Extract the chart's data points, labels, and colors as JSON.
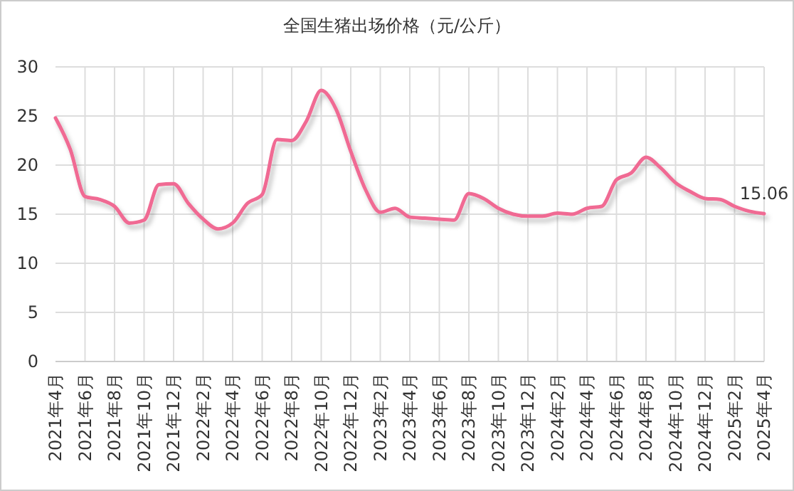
{
  "chart_data": {
    "type": "line",
    "title": "全国生猪出场价格（元/公斤）",
    "categories": [
      "2021年4月",
      null,
      "2021年6月",
      null,
      "2021年8月",
      null,
      "2021年10月",
      null,
      "2021年12月",
      null,
      "2022年2月",
      null,
      "2022年4月",
      null,
      "2022年6月",
      null,
      "2022年8月",
      null,
      "2022年10月",
      null,
      "2022年12月",
      null,
      "2023年2月",
      null,
      "2023年4月",
      null,
      "2023年6月",
      null,
      "2023年8月",
      null,
      "2023年10月",
      null,
      "2023年12月",
      null,
      "2024年2月",
      null,
      "2024年4月",
      null,
      "2024年6月",
      null,
      "2024年8月",
      null,
      "2024年10月",
      null,
      "2024年12月",
      null,
      "2025年2月",
      null,
      "2025年4月"
    ],
    "series": [
      {
        "color": "#f06a93",
        "values": [
          24.8,
          21.6,
          16.8,
          16.5,
          15.8,
          14.1,
          14.4,
          18.0,
          18.1,
          16.1,
          14.5,
          13.5,
          14.1,
          16.1,
          17.0,
          22.6,
          22.5,
          24.5,
          27.6,
          25.7,
          21.4,
          17.5,
          15.2,
          15.6,
          14.7,
          14.6,
          14.5,
          14.4,
          17.1,
          16.6,
          15.6,
          15.0,
          14.8,
          14.8,
          15.1,
          15.0,
          15.6,
          15.8,
          18.5,
          19.2,
          20.8,
          19.7,
          18.2,
          17.3,
          16.6,
          16.5,
          15.8,
          15.3,
          15.06
        ],
        "value_labels": [
          null,
          null,
          null,
          null,
          null,
          null,
          null,
          null,
          null,
          null,
          null,
          null,
          null,
          null,
          null,
          null,
          null,
          null,
          null,
          null,
          null,
          null,
          null,
          null,
          null,
          null,
          null,
          null,
          null,
          null,
          null,
          null,
          null,
          null,
          null,
          null,
          null,
          null,
          null,
          null,
          null,
          null,
          null,
          null,
          null,
          null,
          null,
          null,
          "15.06"
        ]
      }
    ],
    "ylim": [
      0,
      30
    ],
    "yticks": [
      0,
      5,
      10,
      15,
      20,
      25,
      30
    ],
    "grid": true,
    "marker": "none",
    "line_style": "solid"
  }
}
